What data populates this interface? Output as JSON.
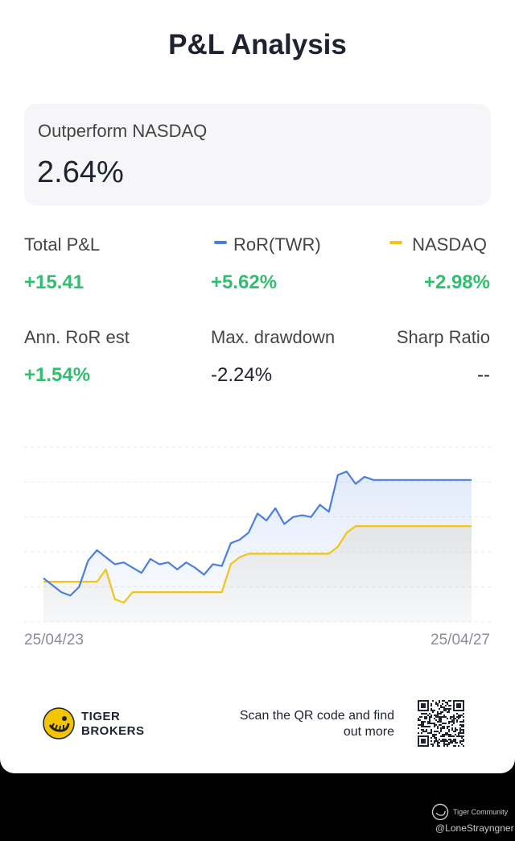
{
  "title": "P&L Analysis",
  "outperform": {
    "label": "Outperform NASDAQ",
    "value": "2.64%"
  },
  "stats": {
    "total_pl": {
      "label": "Total P&L",
      "value": "+15.41"
    },
    "ror": {
      "label": "RoR(TWR)",
      "value": "+5.62%"
    },
    "nasdaq": {
      "label": "NASDAQ",
      "value": "+2.98%"
    },
    "ann_ror": {
      "label": "Ann. RoR est",
      "value": "+1.54%"
    },
    "max_drawdown": {
      "label": "Max. drawdown",
      "value": "-2.24%"
    },
    "sharp_ratio": {
      "label": "Sharp Ratio",
      "value": "--"
    }
  },
  "colors": {
    "ror": "#4a7fe0",
    "nasdaq": "#f0c419",
    "green": "#2fbf6e"
  },
  "chart_data": {
    "type": "line",
    "x_start_label": "25/04/23",
    "x_end_label": "25/04/27",
    "ylim": [
      -2.5,
      7.5
    ],
    "grid": true,
    "series": [
      {
        "name": "RoR(TWR)",
        "values": [
          0.0,
          -0.4,
          -0.8,
          -1.0,
          -0.5,
          1.0,
          1.6,
          1.2,
          0.8,
          0.9,
          0.6,
          0.3,
          1.1,
          0.8,
          0.9,
          0.5,
          0.9,
          0.6,
          0.2,
          0.8,
          0.7,
          2.0,
          2.2,
          2.6,
          3.7,
          3.3,
          4.0,
          3.1,
          3.5,
          3.6,
          3.5,
          4.2,
          3.8,
          5.9,
          6.1,
          5.4,
          5.8,
          5.62,
          5.62,
          5.62,
          5.62,
          5.62,
          5.62,
          5.62,
          5.62,
          5.62,
          5.62,
          5.62,
          5.62
        ]
      },
      {
        "name": "NASDAQ",
        "values": [
          -0.2,
          -0.2,
          -0.2,
          -0.2,
          -0.2,
          -0.2,
          -0.2,
          0.5,
          -1.2,
          -1.4,
          -0.8,
          -0.8,
          -0.8,
          -0.8,
          -0.8,
          -0.8,
          -0.8,
          -0.8,
          -0.8,
          -0.8,
          -0.8,
          0.8,
          1.2,
          1.4,
          1.4,
          1.4,
          1.4,
          1.4,
          1.4,
          1.4,
          1.4,
          1.4,
          1.4,
          1.8,
          2.6,
          2.98,
          2.98,
          2.98,
          2.98,
          2.98,
          2.98,
          2.98,
          2.98,
          2.98,
          2.98,
          2.98,
          2.98,
          2.98,
          2.98
        ]
      }
    ]
  },
  "footer": {
    "brand_line1": "TIGER",
    "brand_line2": "BROKERS",
    "scan_text": "Scan the QR code and find out more"
  },
  "watermark": {
    "line1": "Tiger Community",
    "line2": "@LoneStrayngner"
  }
}
